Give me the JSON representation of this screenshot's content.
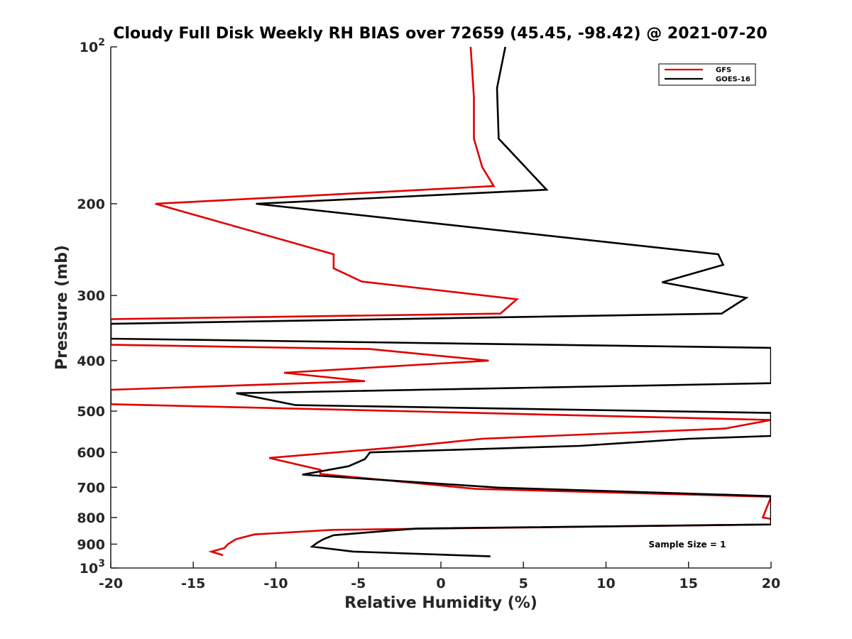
{
  "chart_data": {
    "type": "line",
    "title": "Cloudy Full Disk Weekly RH BIAS over 72659 (45.45, -98.42) @ 2021-07-20",
    "xlabel": "Relative Humidity (%)",
    "ylabel": "Pressure (mb)",
    "xlim": [
      -20,
      20
    ],
    "ylim": [
      100,
      1000
    ],
    "yscale": "log",
    "y_reversed": true,
    "grid": false,
    "legend_position": "top-right",
    "xticks": [
      -20,
      -15,
      -10,
      -5,
      0,
      5,
      10,
      15,
      20
    ],
    "xtick_labels": [
      "-20",
      "-15",
      "-10",
      "-5",
      "0",
      "5",
      "10",
      "15",
      "20"
    ],
    "yticks": [
      {
        "value": 100,
        "label": "10",
        "sup": "2"
      },
      {
        "value": 200,
        "label": "200",
        "sup": ""
      },
      {
        "value": 300,
        "label": "300",
        "sup": ""
      },
      {
        "value": 400,
        "label": "400",
        "sup": ""
      },
      {
        "value": 500,
        "label": "500",
        "sup": ""
      },
      {
        "value": 600,
        "label": "600",
        "sup": ""
      },
      {
        "value": 700,
        "label": "700",
        "sup": ""
      },
      {
        "value": 800,
        "label": "800",
        "sup": ""
      },
      {
        "value": 900,
        "label": "900",
        "sup": ""
      },
      {
        "value": 1000,
        "label": "10",
        "sup": "3"
      }
    ],
    "annotation": "Sample Size = 1",
    "series": [
      {
        "name": "GFS",
        "color": "#e00000",
        "points": [
          [
            1.8,
            100
          ],
          [
            2.0,
            125
          ],
          [
            2.0,
            150
          ],
          [
            2.5,
            170
          ],
          [
            3.2,
            185
          ],
          [
            -17.3,
            200
          ],
          [
            -6.5,
            250
          ],
          [
            -6.5,
            266
          ],
          [
            -4.8,
            282
          ],
          [
            4.6,
            305
          ],
          [
            3.6,
            325
          ],
          [
            -20,
            333
          ],
          [
            -20,
            373
          ],
          [
            -4.3,
            380
          ],
          [
            2.9,
            400
          ],
          [
            -9.5,
            422
          ],
          [
            -4.6,
            438
          ],
          [
            -20,
            455
          ],
          [
            -20,
            485
          ],
          [
            20,
            520
          ],
          [
            17.2,
            540
          ],
          [
            2.5,
            565
          ],
          [
            -2.2,
            585
          ],
          [
            -10.4,
            615
          ],
          [
            -7.3,
            648
          ],
          [
            -7.3,
            660
          ],
          [
            2.1,
            705
          ],
          [
            20,
            730
          ],
          [
            19.5,
            800
          ],
          [
            20,
            805
          ],
          [
            20,
            825
          ],
          [
            -6.6,
            845
          ],
          [
            -11.3,
            862
          ],
          [
            -12.4,
            880
          ],
          [
            -12.9,
            900
          ],
          [
            -13.1,
            915
          ],
          [
            -13.9,
            930
          ],
          [
            -13.2,
            945
          ]
        ]
      },
      {
        "name": "GOES-16",
        "color": "#000000",
        "points": [
          [
            3.9,
            100
          ],
          [
            3.4,
            120
          ],
          [
            3.5,
            150
          ],
          [
            6.4,
            188
          ],
          [
            -11.2,
            200
          ],
          [
            16.8,
            250
          ],
          [
            17.1,
            262
          ],
          [
            13.4,
            283
          ],
          [
            18.5,
            303
          ],
          [
            17.0,
            325
          ],
          [
            -20,
            340
          ],
          [
            -20,
            363
          ],
          [
            20,
            378
          ],
          [
            20,
            442
          ],
          [
            -12.4,
            462
          ],
          [
            -8.8,
            487
          ],
          [
            20,
            504
          ],
          [
            20,
            558
          ],
          [
            15.0,
            565
          ],
          [
            8.4,
            583
          ],
          [
            -4.3,
            600
          ],
          [
            -4.6,
            618
          ],
          [
            -5.6,
            638
          ],
          [
            -8.4,
            662
          ],
          [
            3.5,
            701
          ],
          [
            20,
            728
          ],
          [
            20,
            825
          ],
          [
            -1.5,
            840
          ],
          [
            -6.5,
            865
          ],
          [
            -7.1,
            880
          ],
          [
            -7.5,
            895
          ],
          [
            -7.8,
            910
          ],
          [
            -5.3,
            930
          ],
          [
            3.0,
            950
          ]
        ]
      }
    ]
  }
}
